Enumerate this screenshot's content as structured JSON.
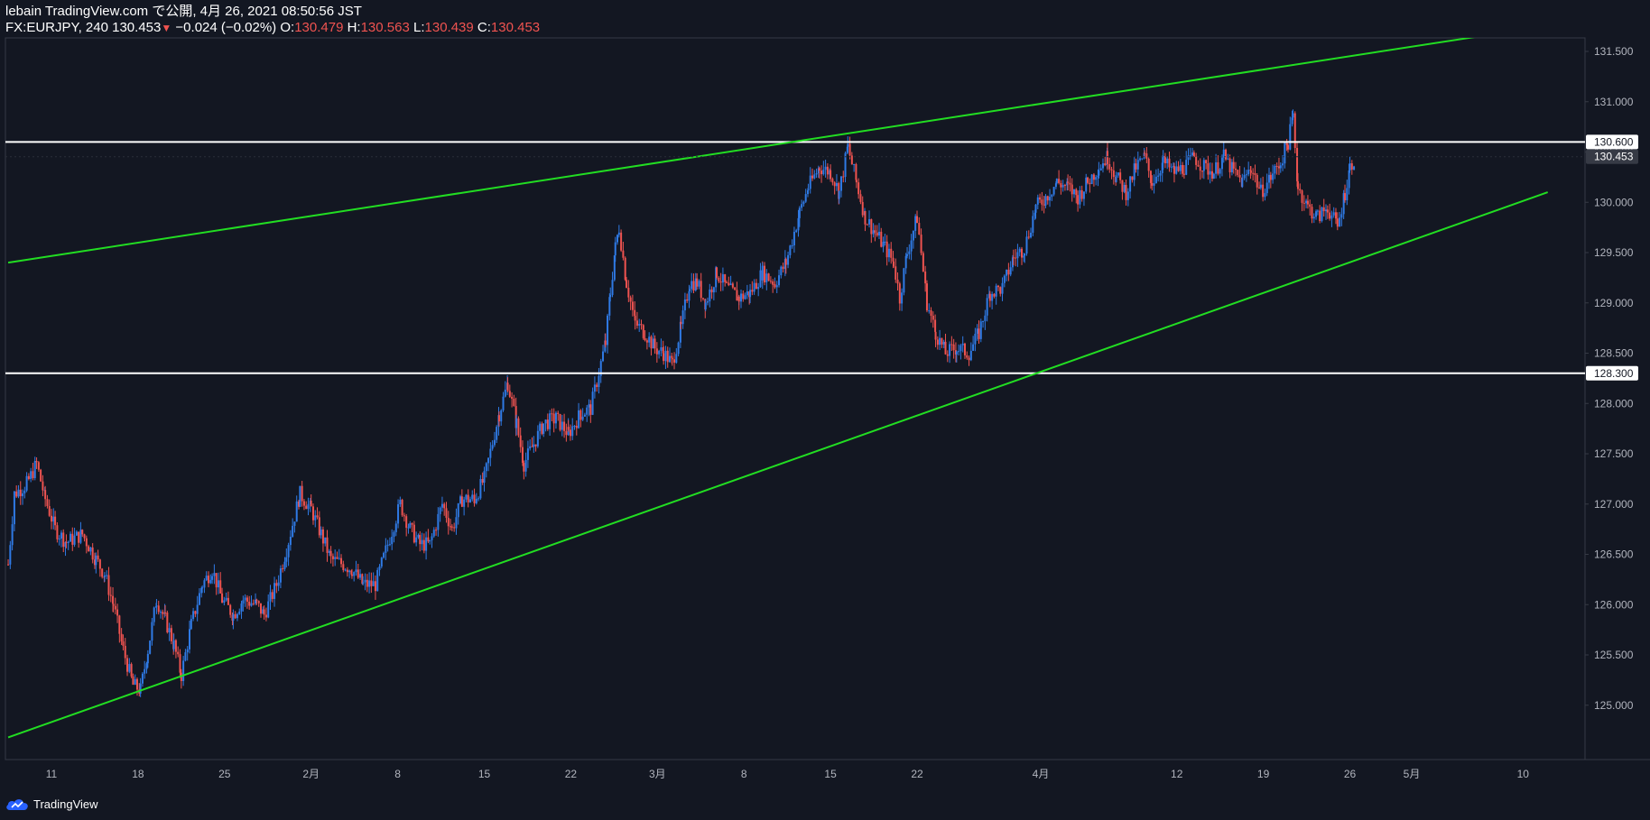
{
  "header": {
    "line1": "lebain TradingView.com で公開, 4月 26, 2021 08:50:56 JST",
    "symbol": "FX:EURJPY, 240",
    "last": "130.453",
    "change_arrow": "▼",
    "change": "−0.024 (−0.02%)",
    "o_label": "O:",
    "o_value": "130.479",
    "h_label": "H:",
    "h_value": "130.563",
    "l_label": "L:",
    "l_value": "130.439",
    "c_label": "C:",
    "c_value": "130.453"
  },
  "footer": {
    "brand": "TradingView",
    "logo_icon": "tradingview-cloud-icon"
  },
  "colors": {
    "background": "#131722",
    "up": "#2f7ae5",
    "down": "#ef5350",
    "trendline": "#22dd22",
    "hline": "#ffffff",
    "axis_text": "#b2b5be"
  },
  "chart_data": {
    "type": "candlestick",
    "symbol": "FX:EURJPY",
    "interval": "240",
    "ylim": [
      124.6,
      131.7
    ],
    "y_ticks": [
      "131.500",
      "131.000",
      "130.500",
      "130.000",
      "129.500",
      "129.000",
      "128.500",
      "128.000",
      "127.500",
      "127.000",
      "126.500",
      "126.000",
      "125.500",
      "125.000"
    ],
    "x_ticks": [
      {
        "label": "11",
        "d": 0
      },
      {
        "label": "18",
        "d": 7
      },
      {
        "label": "25",
        "d": 14
      },
      {
        "label": "2月",
        "d": 21
      },
      {
        "label": "8",
        "d": 28
      },
      {
        "label": "15",
        "d": 35
      },
      {
        "label": "22",
        "d": 42
      },
      {
        "label": "3月",
        "d": 49
      },
      {
        "label": "8",
        "d": 56
      },
      {
        "label": "15",
        "d": 63
      },
      {
        "label": "22",
        "d": 70
      },
      {
        "label": "4月",
        "d": 80
      },
      {
        "label": "12",
        "d": 91
      },
      {
        "label": "19",
        "d": 98
      },
      {
        "label": "26",
        "d": 105
      },
      {
        "label": "5月",
        "d": 110
      },
      {
        "label": "10",
        "d": 119
      }
    ],
    "price_path": [
      [
        -3.5,
        126.4
      ],
      [
        -3.0,
        127.1
      ],
      [
        -2.0,
        127.2
      ],
      [
        -1.2,
        127.4
      ],
      [
        -0.5,
        127.05
      ],
      [
        0.3,
        126.75
      ],
      [
        1.2,
        126.62
      ],
      [
        2.5,
        126.7
      ],
      [
        3.6,
        126.45
      ],
      [
        4.3,
        126.3
      ],
      [
        5.0,
        126.0
      ],
      [
        5.8,
        125.55
      ],
      [
        6.6,
        125.2
      ],
      [
        7.2,
        125.15
      ],
      [
        7.8,
        125.55
      ],
      [
        8.5,
        126.05
      ],
      [
        9.2,
        125.85
      ],
      [
        9.9,
        125.6
      ],
      [
        10.5,
        125.3
      ],
      [
        11.3,
        125.8
      ],
      [
        12.2,
        126.2
      ],
      [
        13.0,
        126.35
      ],
      [
        13.8,
        126.05
      ],
      [
        14.7,
        125.9
      ],
      [
        15.5,
        126.05
      ],
      [
        16.6,
        126.0
      ],
      [
        17.2,
        125.9
      ],
      [
        18.2,
        126.2
      ],
      [
        19.0,
        126.55
      ],
      [
        20.1,
        127.1
      ],
      [
        21.0,
        126.95
      ],
      [
        21.8,
        126.7
      ],
      [
        22.6,
        126.45
      ],
      [
        23.6,
        126.4
      ],
      [
        24.3,
        126.35
      ],
      [
        25.2,
        126.2
      ],
      [
        26.2,
        126.2
      ],
      [
        27.2,
        126.6
      ],
      [
        28.2,
        127.0
      ],
      [
        29.0,
        126.75
      ],
      [
        29.8,
        126.6
      ],
      [
        30.6,
        126.6
      ],
      [
        31.6,
        127.0
      ],
      [
        32.4,
        126.75
      ],
      [
        33.2,
        127.05
      ],
      [
        34.2,
        127.05
      ],
      [
        35.0,
        127.25
      ],
      [
        36.2,
        127.9
      ],
      [
        36.9,
        128.2
      ],
      [
        37.6,
        127.8
      ],
      [
        38.2,
        127.4
      ],
      [
        39.0,
        127.6
      ],
      [
        39.8,
        127.8
      ],
      [
        40.8,
        127.85
      ],
      [
        41.8,
        127.7
      ],
      [
        42.8,
        127.9
      ],
      [
        43.6,
        127.95
      ],
      [
        44.8,
        128.6
      ],
      [
        45.2,
        129.1
      ],
      [
        45.6,
        129.55
      ],
      [
        45.9,
        129.75
      ],
      [
        46.5,
        129.2
      ],
      [
        47.2,
        128.8
      ],
      [
        48.0,
        128.7
      ],
      [
        48.8,
        128.55
      ],
      [
        49.5,
        128.5
      ],
      [
        50.2,
        128.4
      ],
      [
        50.9,
        128.75
      ],
      [
        51.6,
        129.2
      ],
      [
        52.2,
        129.2
      ],
      [
        52.9,
        129.0
      ],
      [
        53.8,
        129.3
      ],
      [
        54.6,
        129.15
      ],
      [
        55.6,
        129.05
      ],
      [
        56.5,
        129.1
      ],
      [
        57.5,
        129.3
      ],
      [
        58.5,
        129.2
      ],
      [
        59.4,
        129.4
      ],
      [
        60.5,
        129.9
      ],
      [
        61.2,
        130.15
      ],
      [
        62.1,
        130.35
      ],
      [
        63.0,
        130.3
      ],
      [
        63.7,
        130.1
      ],
      [
        64.4,
        130.55
      ],
      [
        65.1,
        130.2
      ],
      [
        65.8,
        129.85
      ],
      [
        66.6,
        129.7
      ],
      [
        67.4,
        129.55
      ],
      [
        68.1,
        129.4
      ],
      [
        68.6,
        129.05
      ],
      [
        69.2,
        129.5
      ],
      [
        70.0,
        129.85
      ],
      [
        70.8,
        129.0
      ],
      [
        71.5,
        128.7
      ],
      [
        72.3,
        128.5
      ],
      [
        73.2,
        128.55
      ],
      [
        74.2,
        128.5
      ],
      [
        75.0,
        128.7
      ],
      [
        75.9,
        129.1
      ],
      [
        76.9,
        129.15
      ],
      [
        77.8,
        129.45
      ],
      [
        78.7,
        129.55
      ],
      [
        79.6,
        129.95
      ],
      [
        80.4,
        130.05
      ],
      [
        81.3,
        130.2
      ],
      [
        82.2,
        130.15
      ],
      [
        83.0,
        130.05
      ],
      [
        83.8,
        130.2
      ],
      [
        84.7,
        130.35
      ],
      [
        85.4,
        130.45
      ],
      [
        86.1,
        130.25
      ],
      [
        86.9,
        130.1
      ],
      [
        87.7,
        130.35
      ],
      [
        88.4,
        130.45
      ],
      [
        89.0,
        130.2
      ],
      [
        89.9,
        130.4
      ],
      [
        90.8,
        130.3
      ],
      [
        91.6,
        130.35
      ],
      [
        92.4,
        130.45
      ],
      [
        93.2,
        130.35
      ],
      [
        94.0,
        130.3
      ],
      [
        94.8,
        130.45
      ],
      [
        95.6,
        130.3
      ],
      [
        96.3,
        130.2
      ],
      [
        97.0,
        130.35
      ],
      [
        97.8,
        130.1
      ],
      [
        98.6,
        130.25
      ],
      [
        99.4,
        130.4
      ],
      [
        100.0,
        130.6
      ],
      [
        100.4,
        130.85
      ],
      [
        100.8,
        130.15
      ],
      [
        101.6,
        129.95
      ],
      [
        102.4,
        129.85
      ],
      [
        103.2,
        129.95
      ],
      [
        104.0,
        129.75
      ],
      [
        104.6,
        130.1
      ],
      [
        105.0,
        130.35
      ],
      [
        105.4,
        130.45
      ]
    ],
    "horizontal_lines": [
      {
        "price": 130.6,
        "label": "130.600"
      },
      {
        "price": 128.3,
        "label": "128.300"
      }
    ],
    "last_price": {
      "price": 130.453,
      "label": "130.453"
    },
    "trendlines": [
      {
        "from": {
          "d": -3.5,
          "price": 129.4
        },
        "to": {
          "d": 116.5,
          "price": 131.67
        }
      },
      {
        "from": {
          "d": -3.5,
          "price": 124.68
        },
        "to": {
          "d": 121.0,
          "price": 130.1
        }
      }
    ]
  }
}
